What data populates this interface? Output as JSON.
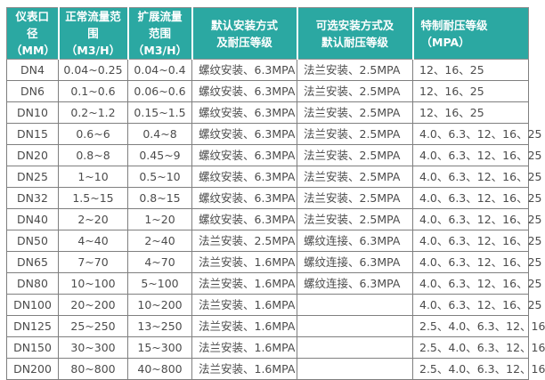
{
  "colors": {
    "header_bg": "#2ba8a2",
    "header_text": "#ffffff",
    "body_text": "#4c4c4c",
    "grid_line": "#7f7f7f",
    "header_divider": "#ffffff",
    "row_bg": "#ffffff"
  },
  "table": {
    "columns": [
      {
        "id": "diameter",
        "line1": "仪表口径",
        "line2": "（MM）",
        "header_align": "center",
        "cell_align": "center",
        "width": 58
      },
      {
        "id": "normal-flow-range",
        "line1": "正常流量范围",
        "line2": "（M3/H）",
        "header_align": "center",
        "cell_align": "center",
        "width": 78
      },
      {
        "id": "extended-flow-range",
        "line1": "扩展流量范围",
        "line2": "（M3/H）",
        "header_align": "center",
        "cell_align": "center",
        "width": 72
      },
      {
        "id": "default-installation",
        "line1": "默认安装方式",
        "line2": "及耐压等级",
        "header_align": "center",
        "cell_align": "left",
        "width": 118
      },
      {
        "id": "optional-installation",
        "line1": "可选安装方式及",
        "line2": "默认耐压等级",
        "header_align": "center",
        "cell_align": "left",
        "width": 130
      },
      {
        "id": "special-pressure-rating",
        "line1": "特制耐压等级",
        "line2": "（MPA）",
        "header_align": "left",
        "cell_align": "left",
        "width": 130
      }
    ],
    "rows": [
      [
        "DN4",
        "0.04~0.25",
        "0.04~0.4",
        "螺纹安装、6.3MPA",
        "法兰安装、2.5MPA",
        "12、16、25"
      ],
      [
        "DN6",
        "0.1~0.6",
        "0.06~0.6",
        "螺纹安装、6.3MPA",
        "法兰安装、2.5MPA",
        "12、16、25"
      ],
      [
        "DN10",
        "0.2~1.2",
        "0.15~1.5",
        "螺纹安装、6.3MPA",
        "法兰安装、2.5MPA",
        "12、16、25"
      ],
      [
        "DN15",
        "0.6~6",
        "0.4~8",
        "螺纹安装、6.3MPA",
        "法兰安装、2.5MPA",
        "4.0、6.3、12、16、25"
      ],
      [
        "DN20",
        "0.8~8",
        "0.45~9",
        "螺纹安装、6.3MPA",
        "法兰安装、2.5MPA",
        "4.0、6.3、12、16、25"
      ],
      [
        "DN25",
        "1~10",
        "0.5~10",
        "螺纹安装、6.3MPA",
        "法兰安装、2.5MPA",
        "4.0、6.3、12、16、25"
      ],
      [
        "DN32",
        "1.5~15",
        "0.8~15",
        "螺纹安装、6.3MPA",
        "法兰安装、2.5MPA",
        "4.0、6.3、12、16、25"
      ],
      [
        "DN40",
        "2~20",
        "1~20",
        "螺纹安装、6.3MPA",
        "法兰安装、2.5MPA",
        "4.0、6.3、12、16、25"
      ],
      [
        "DN50",
        "4~40",
        "2~40",
        "法兰安装、2.5MPA",
        "螺纹连接、6.3MPA",
        "4.0、6.3、12、16、25"
      ],
      [
        "DN65",
        "7~70",
        "4~70",
        "法兰安装、1.6MPA",
        "螺纹连接、6.3MPA",
        "4.0、6.3、12、16、25"
      ],
      [
        "DN80",
        "10~100",
        "5~100",
        "法兰安装、1.6MPA",
        "螺纹连接、6.3MPA",
        "4.0、6.3、12、16、25"
      ],
      [
        "DN100",
        "20~200",
        "10~200",
        "法兰安装、1.6MPA",
        "",
        "4.0、6.3、12、16、25"
      ],
      [
        "DN125",
        "25~250",
        "13~250",
        "法兰安装、1.6MPA",
        "",
        "2.5、4.0、6.3、12、16"
      ],
      [
        "DN150",
        "30~300",
        "15~300",
        "法兰安装、1.6MPA",
        "",
        "2.5、4.0、6.3、12、16"
      ],
      [
        "DN200",
        "80~800",
        "40~800",
        "法兰安装、1.6MPA",
        "",
        "2.5、4.0、6.3、12、16"
      ]
    ]
  }
}
